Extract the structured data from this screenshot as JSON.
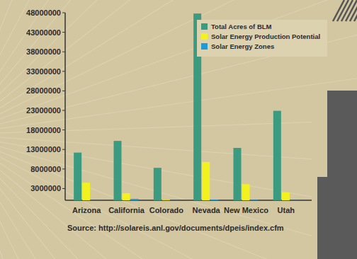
{
  "chart_data": {
    "type": "bar",
    "categories": [
      "Arizona",
      "California",
      "Colorado",
      "Nevada",
      "New Mexico",
      "Utah"
    ],
    "series": [
      {
        "name": "Total Acres of BLM",
        "color": "#3a9b80",
        "values": [
          12200000,
          15200000,
          8300000,
          47800000,
          13400000,
          22900000
        ]
      },
      {
        "name": "Solar Energy Production Potential",
        "color": "#f2f21e",
        "values": [
          4500000,
          1800000,
          150000,
          9800000,
          4100000,
          2000000
        ]
      },
      {
        "name": "Solar Energy Zones",
        "color": "#1e9ad8",
        "values": [
          10000,
          340000,
          20000,
          170000,
          110000,
          30000
        ]
      }
    ],
    "ylim": [
      0,
      48000000
    ],
    "yticks": [
      3000000,
      8000000,
      13000000,
      18000000,
      23000000,
      28000000,
      33000000,
      38000000,
      43000000,
      48000000
    ],
    "grid": false,
    "legend": "top-right",
    "source": "Source: http://solareis.anl.gov/documents/dpeis/index.cfm"
  }
}
